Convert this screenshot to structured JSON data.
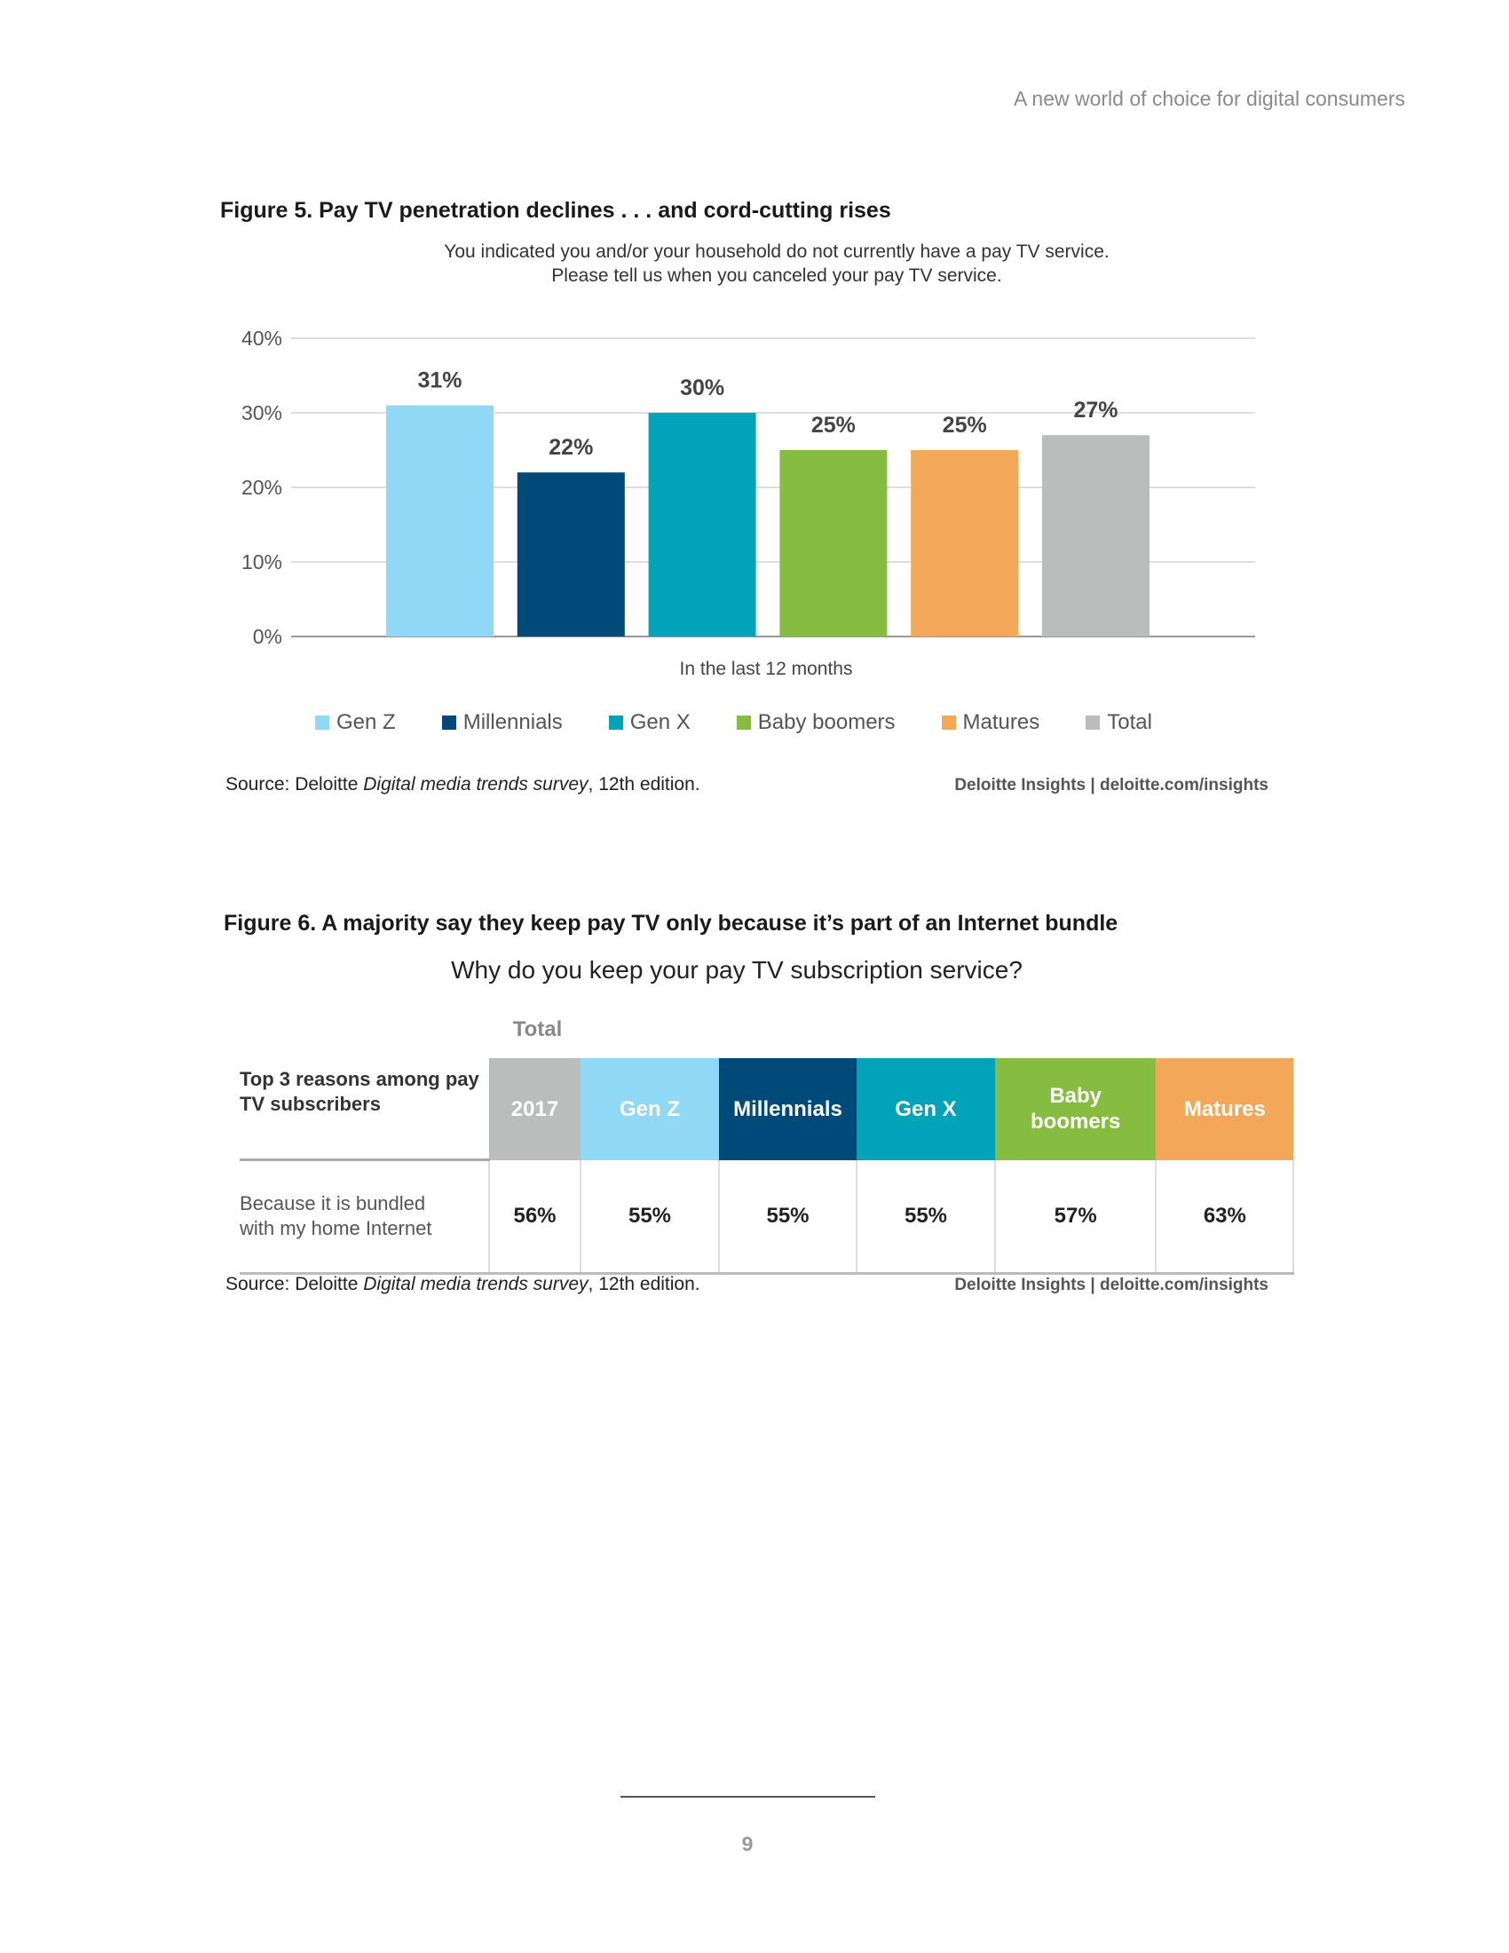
{
  "header": {
    "running_title": "A new world of choice for digital consumers"
  },
  "figure5": {
    "title": "Figure 5. Pay TV penetration declines . . . and cord-cutting rises",
    "subtitle_line1": "You indicated you and/or your household do not currently have a pay TV service.",
    "subtitle_line2": "Please tell us when you canceled your pay TV service.",
    "source_prefix": "Source: Deloitte ",
    "source_italic": "Digital media trends survey",
    "source_suffix": ", 12th edition.",
    "credit": "Deloitte Insights | deloitte.com/insights"
  },
  "chart_data": {
    "type": "bar",
    "categories": [
      "In the last 12 months"
    ],
    "xlabel": "In the last 12 months",
    "ylabel": "",
    "ylim": [
      0,
      40
    ],
    "yticks": [
      "0%",
      "10%",
      "20%",
      "30%",
      "40%"
    ],
    "grid": true,
    "legend_placement": "bottom",
    "series": [
      {
        "name": "Gen Z",
        "values": [
          31
        ],
        "label": "31%",
        "color": "#8fd8f6"
      },
      {
        "name": "Millennials",
        "values": [
          22
        ],
        "label": "22%",
        "color": "#004a7a"
      },
      {
        "name": "Gen X",
        "values": [
          30
        ],
        "label": "30%",
        "color": "#00a3b8"
      },
      {
        "name": "Baby boomers",
        "values": [
          25
        ],
        "label": "25%",
        "color": "#86bc40"
      },
      {
        "name": "Matures",
        "values": [
          25
        ],
        "label": "25%",
        "color": "#f2a858"
      },
      {
        "name": "Total",
        "values": [
          27
        ],
        "label": "27%",
        "color": "#bbbcbc"
      }
    ]
  },
  "figure6": {
    "title": "Figure 6. A majority say they keep pay TV only because it’s part of an Internet bundle",
    "question": "Why do you keep your pay TV subscription service?",
    "total_label": "Total",
    "row_header": "Top 3 reasons among pay TV subscribers",
    "columns": [
      {
        "label": "2017",
        "color": "#bbbcbc"
      },
      {
        "label": "Gen Z",
        "color": "#8fd8f6"
      },
      {
        "label": "Millennials",
        "color": "#004a7a"
      },
      {
        "label": "Gen X",
        "color": "#00a3b8"
      },
      {
        "label": "Baby boomers",
        "color": "#86bc40"
      },
      {
        "label": "Matures",
        "color": "#f2a858"
      }
    ],
    "rows": [
      {
        "label": "Because it is bundled with my home Internet",
        "values": [
          "56%",
          "55%",
          "55%",
          "55%",
          "57%",
          "63%"
        ]
      }
    ],
    "source_prefix": "Source: Deloitte ",
    "source_italic": "Digital media trends survey",
    "source_suffix": ", 12th edition.",
    "credit": "Deloitte Insights | deloitte.com/insights"
  },
  "footer": {
    "page_number": "9"
  }
}
